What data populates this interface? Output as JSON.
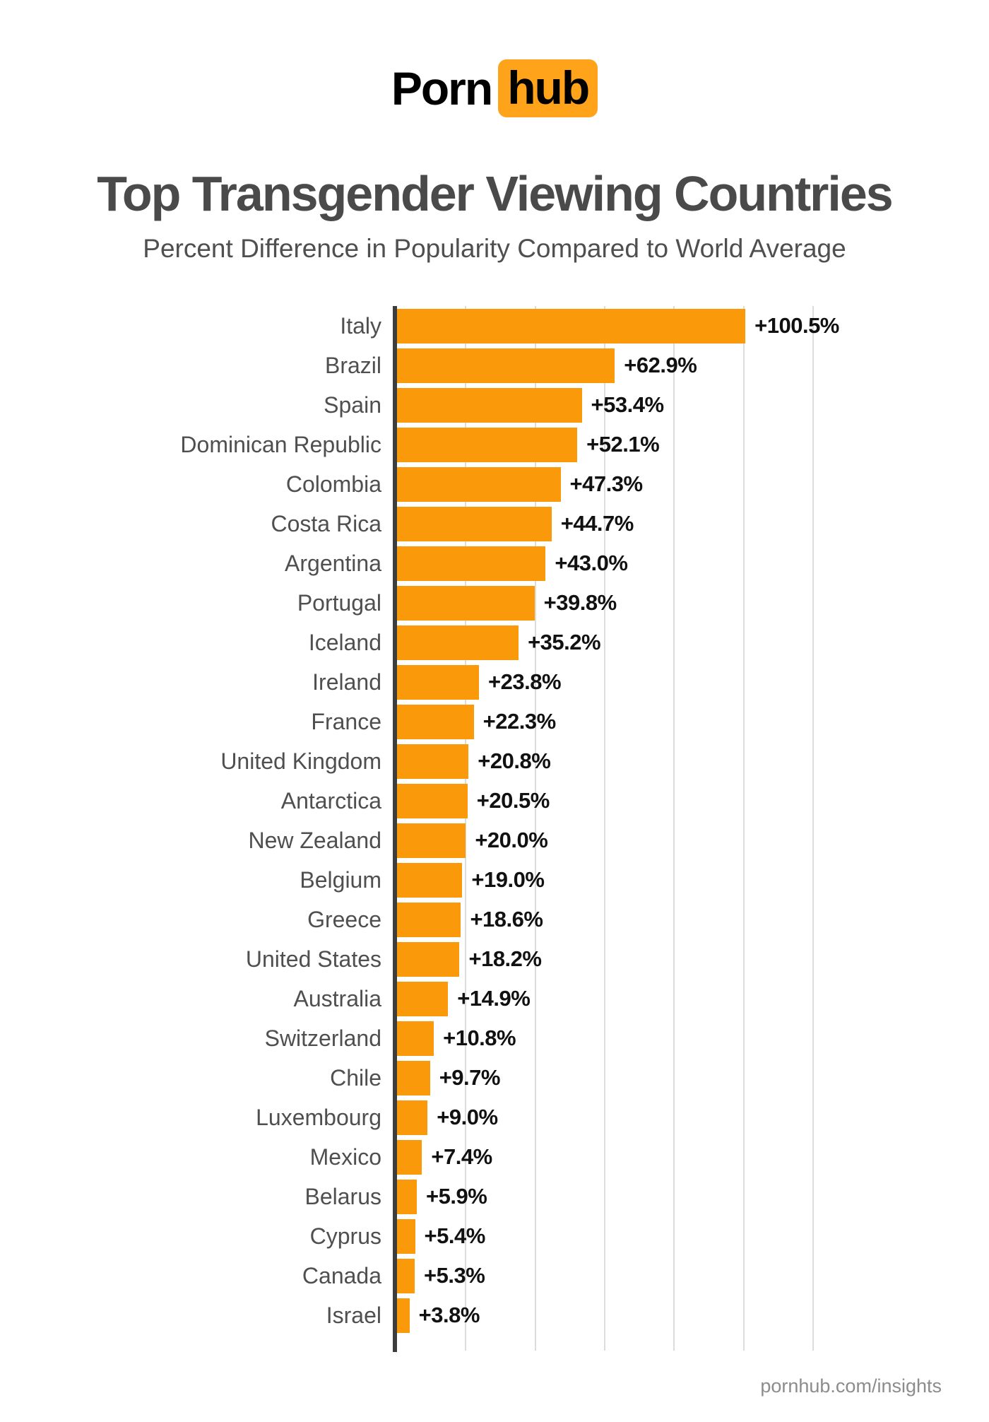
{
  "logo": {
    "porn": "Porn",
    "hub": "hub"
  },
  "footer": {
    "url": "pornhub.com/insights"
  },
  "colors": {
    "logo_badge_orange": "#FFA31A",
    "bar_orange": "#FA9A0A",
    "title_gray": "#4A4A4A",
    "subtitle_gray": "#4F4F4F",
    "label_gray": "#4F4F4F",
    "value_black": "#111111",
    "footer_gray": "#8C8C8C",
    "axis_dark": "#3D3D3D",
    "gridline_gray": "#DCDCDC",
    "background": "#FFFFFF"
  },
  "chart_data": {
    "type": "bar",
    "orientation": "horizontal",
    "title": "Top Transgender Viewing Countries",
    "subtitle": "Percent Difference in Popularity Compared to World Average",
    "xlabel": "",
    "ylabel": "",
    "unit": "percent",
    "xlim": [
      0,
      120
    ],
    "gridline_step_percent": 20,
    "grid": true,
    "legend": false,
    "categories": [
      "Italy",
      "Brazil",
      "Spain",
      "Dominican Republic",
      "Colombia",
      "Costa Rica",
      "Argentina",
      "Portugal",
      "Iceland",
      "Ireland",
      "France",
      "United Kingdom",
      "Antarctica",
      "New Zealand",
      "Belgium",
      "Greece",
      "United States",
      "Australia",
      "Switzerland",
      "Chile",
      "Luxembourg",
      "Mexico",
      "Belarus",
      "Cyprus",
      "Canada",
      "Israel"
    ],
    "values": [
      100.5,
      62.9,
      53.4,
      52.1,
      47.3,
      44.7,
      43.0,
      39.8,
      35.2,
      23.8,
      22.3,
      20.8,
      20.5,
      20.0,
      19.0,
      18.6,
      18.2,
      14.9,
      10.8,
      9.7,
      9.0,
      7.4,
      5.9,
      5.4,
      5.3,
      3.8
    ],
    "value_labels": [
      "+100.5%",
      "+62.9%",
      "+53.4%",
      "+52.1%",
      "+47.3%",
      "+44.7%",
      "+43.0%",
      "+39.8%",
      "+35.2%",
      "+23.8%",
      "+22.3%",
      "+20.8%",
      "+20.5%",
      "+20.0%",
      "+19.0%",
      "+18.6%",
      "+18.2%",
      "+14.9%",
      "+10.8%",
      "+9.7%",
      "+9.0%",
      "+7.4%",
      "+5.9%",
      "+5.4%",
      "+5.3%",
      "+3.8%"
    ]
  }
}
